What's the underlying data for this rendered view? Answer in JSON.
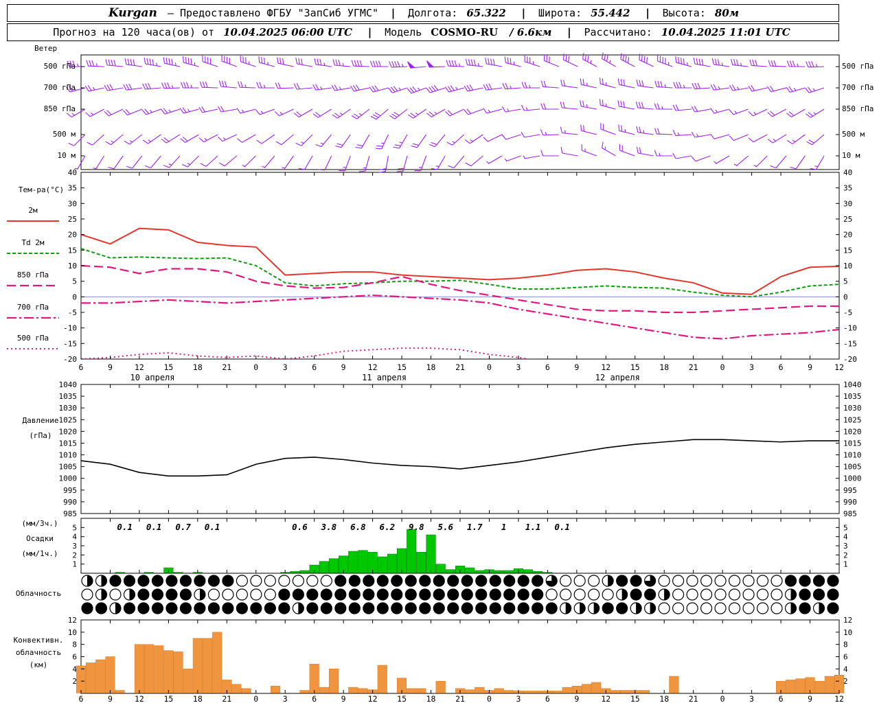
{
  "header1": {
    "station": "Kurgan",
    "provider": "Предоставлено ФГБУ \"ЗапСиб УГМС\"",
    "lon_label": "Долгота:",
    "lon": "65.322",
    "lat_label": "Широта:",
    "lat": "55.442",
    "alt_label": "Высота:",
    "alt": "80м"
  },
  "header2": {
    "forecast_label": "Прогноз на 120 часа(ов) от",
    "run": "10.04.2025 06:00 UTC",
    "model_label": "Модель",
    "model": "COSMO-RU",
    "model_res": "/ 6.6км",
    "calc_label": "Рассчитано:",
    "calc": "10.04.2025 11:01 UTC"
  },
  "sep": {
    "dash": "—",
    "pipe": "|"
  },
  "labels": {
    "wind": "Ветер",
    "wind_levels": [
      "500 гПа",
      "700 гПа",
      "850 гПа",
      "500 м",
      "10 м"
    ],
    "temp_title": "Тем-ра(°C)",
    "leg_2m": "2м",
    "leg_td": "Td 2м",
    "leg_850": "850 гПа",
    "leg_700": "700 гПа",
    "leg_500": "500 гПа",
    "pressure1": "Давление",
    "pressure2": "(гПа)",
    "precip1": "(мм/3ч.)",
    "precip2": "Осадки",
    "precip3": "(мм/1ч.)",
    "cloud": "Облачность",
    "conv1": "Конвективн.",
    "conv2": "облачность",
    "conv3": "(км)"
  },
  "chart_data": [
    {
      "id": "wind",
      "type": "wind-barbs",
      "color": "#a020f0",
      "levels": [
        {
          "label": "500 гПа",
          "dirs": [
            270,
            272,
            275,
            278,
            280,
            282,
            285,
            288,
            290,
            288,
            285,
            282,
            280,
            278,
            275,
            272,
            270,
            268,
            265,
            268,
            272,
            276,
            280,
            284,
            288,
            292,
            295,
            298,
            300,
            298,
            295,
            290,
            285,
            280,
            278,
            276,
            274,
            272,
            270,
            268
          ],
          "speeds": [
            35,
            35,
            40,
            40,
            45,
            45,
            45,
            40,
            40,
            35,
            35,
            30,
            30,
            35,
            35,
            40,
            40,
            45,
            50,
            50,
            45,
            45,
            40,
            35,
            35,
            30,
            30,
            35,
            35,
            40,
            40,
            45,
            45,
            40,
            35,
            35,
            30,
            30,
            35,
            35
          ]
        },
        {
          "label": "700 гПа",
          "dirs": [
            255,
            258,
            260,
            262,
            265,
            268,
            270,
            272,
            275,
            272,
            270,
            268,
            265,
            262,
            260,
            258,
            255,
            252,
            250,
            252,
            255,
            258,
            262,
            266,
            270,
            274,
            278,
            282,
            285,
            282,
            278,
            274,
            270,
            266,
            262,
            260,
            258,
            256,
            254,
            252
          ],
          "speeds": [
            25,
            25,
            30,
            30,
            30,
            35,
            35,
            30,
            30,
            25,
            25,
            20,
            20,
            25,
            25,
            30,
            30,
            35,
            35,
            40,
            35,
            30,
            30,
            25,
            25,
            20,
            20,
            25,
            25,
            30,
            30,
            35,
            35,
            30,
            25,
            25,
            20,
            20,
            25,
            25
          ]
        },
        {
          "label": "850 гПа",
          "dirs": [
            240,
            242,
            245,
            248,
            250,
            252,
            255,
            258,
            260,
            255,
            250,
            245,
            240,
            238,
            235,
            232,
            230,
            232,
            235,
            240,
            245,
            250,
            255,
            260,
            265,
            270,
            275,
            280,
            285,
            280,
            275,
            270,
            265,
            260,
            255,
            250,
            245,
            242,
            240,
            238
          ],
          "speeds": [
            15,
            15,
            20,
            20,
            25,
            25,
            25,
            20,
            20,
            15,
            15,
            15,
            20,
            20,
            25,
            25,
            30,
            30,
            25,
            25,
            20,
            20,
            15,
            15,
            15,
            20,
            20,
            25,
            25,
            30,
            30,
            25,
            20,
            20,
            15,
            15,
            15,
            20,
            20,
            25
          ]
        },
        {
          "label": "500 м",
          "dirs": [
            225,
            228,
            230,
            232,
            235,
            238,
            240,
            242,
            245,
            240,
            235,
            230,
            225,
            220,
            215,
            210,
            205,
            210,
            215,
            220,
            228,
            236,
            244,
            252,
            260,
            268,
            276,
            284,
            290,
            284,
            278,
            272,
            266,
            260,
            254,
            248,
            242,
            238,
            234,
            230
          ],
          "speeds": [
            10,
            10,
            15,
            15,
            15,
            20,
            20,
            15,
            15,
            10,
            10,
            10,
            15,
            15,
            20,
            20,
            25,
            25,
            20,
            20,
            15,
            15,
            10,
            10,
            10,
            15,
            15,
            20,
            20,
            25,
            25,
            20,
            15,
            15,
            10,
            10,
            10,
            15,
            15,
            20
          ]
        },
        {
          "label": "10 м",
          "dirs": [
            210,
            212,
            215,
            218,
            220,
            222,
            225,
            228,
            230,
            225,
            220,
            215,
            210,
            205,
            200,
            195,
            190,
            195,
            200,
            210,
            220,
            230,
            240,
            250,
            260,
            270,
            280,
            290,
            300,
            290,
            280,
            270,
            260,
            250,
            240,
            230,
            225,
            220,
            215,
            210
          ],
          "speeds": [
            5,
            5,
            10,
            10,
            10,
            15,
            15,
            10,
            10,
            5,
            5,
            5,
            10,
            10,
            15,
            15,
            20,
            20,
            15,
            15,
            10,
            10,
            5,
            5,
            5,
            10,
            10,
            15,
            15,
            20,
            20,
            15,
            10,
            10,
            5,
            5,
            5,
            10,
            10,
            15
          ]
        }
      ]
    },
    {
      "id": "temperature",
      "type": "line",
      "title": "Тем-ра(°C)",
      "ylim": [
        -20,
        40
      ],
      "yticks": [
        40,
        35,
        30,
        25,
        20,
        15,
        10,
        5,
        0,
        -5,
        -10,
        -15,
        -20
      ],
      "hour_labels": [
        "6",
        "9",
        "12",
        "15",
        "18",
        "21",
        "0",
        "3",
        "6",
        "9",
        "12",
        "15",
        "18",
        "21",
        "0",
        "3",
        "6",
        "9",
        "12",
        "15",
        "18",
        "21",
        "0",
        "3",
        "6",
        "9",
        "12"
      ],
      "dates": [
        {
          "label": "10 апреля",
          "tick": 2.45
        },
        {
          "label": "11 апреля",
          "tick": 10.4
        },
        {
          "label": "12 апреля",
          "tick": 18.4
        }
      ],
      "zero_line": true,
      "series": [
        {
          "name": "2м",
          "color": "#e5352b",
          "dash": "",
          "width": 2,
          "values": [
            20,
            17,
            22,
            21.5,
            17.5,
            16.5,
            16,
            7,
            7.5,
            8,
            8,
            7,
            6.5,
            6,
            5.5,
            6,
            7,
            8.5,
            9,
            8,
            6,
            4.5,
            1.2,
            0.8,
            6.5,
            9.5,
            9.8
          ]
        },
        {
          "name": "Td 2м",
          "color": "#0f9b0f",
          "dash": "5,3",
          "width": 2,
          "values": [
            15.5,
            12.5,
            12.8,
            12.5,
            12.3,
            12.5,
            10,
            4.5,
            3.5,
            4.2,
            4.5,
            5,
            5,
            5.3,
            4,
            2.5,
            2.5,
            3,
            3.5,
            3,
            2.8,
            1.5,
            0.5,
            0,
            1.5,
            3.5,
            4
          ]
        },
        {
          "name": "850 гПа",
          "color": "#e0187e",
          "dash": "13,6",
          "width": 2.2,
          "values": [
            10,
            9.5,
            7.5,
            9,
            9,
            8,
            5,
            3.5,
            2.8,
            3,
            4.5,
            6.5,
            4,
            2,
            0.5,
            -1,
            -2.5,
            -4,
            -4.5,
            -4.5,
            -5,
            -5,
            -4.5,
            -4,
            -3.5,
            -3,
            -3
          ]
        },
        {
          "name": "700 гПа",
          "color": "#e0187e",
          "dash": "14,4,3,4",
          "width": 2.2,
          "values": [
            -2,
            -2,
            -1.5,
            -1,
            -1.5,
            -2,
            -1.5,
            -1,
            -0.5,
            0,
            0.5,
            0,
            -0.5,
            -1,
            -2,
            -4,
            -5.5,
            -7,
            -8.5,
            -10,
            -11.5,
            -13,
            -13.5,
            -12.5,
            -12,
            -11.5,
            -10.5
          ]
        },
        {
          "name": "500 гПа",
          "color": "#e0187e",
          "dash": "2,4",
          "width": 2,
          "values": [
            -20,
            -19.5,
            -18.5,
            -18,
            -19,
            -19.5,
            -19,
            -20,
            -19,
            -17.5,
            -17,
            -16.5,
            -16.5,
            -17,
            -18.5,
            -19.5,
            -21,
            -22,
            -22,
            -22,
            -22,
            -22,
            -22,
            -22,
            -22,
            -22,
            -22
          ]
        }
      ]
    },
    {
      "id": "pressure",
      "type": "line",
      "title": "Давление (гПа)",
      "ylim": [
        985,
        1040
      ],
      "yticks": [
        1040,
        1035,
        1030,
        1025,
        1020,
        1015,
        1010,
        1005,
        1000,
        995,
        990,
        985
      ],
      "series": [
        {
          "name": "Давление",
          "color": "#000000",
          "dash": "",
          "width": 1.6,
          "values": [
            1007.5,
            1006,
            1002.5,
            1001,
            1001,
            1001.5,
            1006,
            1008.5,
            1009,
            1008,
            1006.5,
            1005.5,
            1005,
            1004,
            1005.5,
            1007,
            1009,
            1011,
            1013,
            1014.5,
            1015.5,
            1016.5,
            1016.5,
            1016,
            1015.5,
            1016,
            1016
          ]
        }
      ]
    },
    {
      "id": "precipitation",
      "type": "bar",
      "title": "Осадки (мм/1ч.)",
      "ylim": [
        0,
        6
      ],
      "yticks": [
        5,
        4,
        3,
        2,
        1
      ],
      "color": "#00c800",
      "stroke": "#007700",
      "hourly": {
        "4": 0.1,
        "7": 0.1,
        "9": 0.6,
        "10": 0.1,
        "12": 0.1,
        "21": 0.1,
        "22": 0.2,
        "23": 0.3,
        "24": 0.9,
        "25": 1.3,
        "26": 1.6,
        "27": 1.9,
        "28": 2.4,
        "29": 2.5,
        "30": 2.3,
        "31": 1.8,
        "32": 2.1,
        "33": 2.7,
        "34": 4.8,
        "35": 2.3,
        "36": 4.2,
        "37": 1.0,
        "38": 0.4,
        "39": 0.8,
        "40": 0.6,
        "41": 0.3,
        "42": 0.4,
        "43": 0.3,
        "44": 0.3,
        "45": 0.5,
        "46": 0.4,
        "47": 0.2,
        "48": 0.1
      },
      "labels_3h": [
        {
          "tick": 1.5,
          "text": "0.1"
        },
        {
          "tick": 2.5,
          "text": "0.1"
        },
        {
          "tick": 3.5,
          "text": "0.7"
        },
        {
          "tick": 4.5,
          "text": "0.1"
        },
        {
          "tick": 7.5,
          "text": "0.6"
        },
        {
          "tick": 8.5,
          "text": "3.8"
        },
        {
          "tick": 9.5,
          "text": "6.8"
        },
        {
          "tick": 10.5,
          "text": "6.2"
        },
        {
          "tick": 11.5,
          "text": "9.8"
        },
        {
          "tick": 12.5,
          "text": "5.6"
        },
        {
          "tick": 13.5,
          "text": "1.7"
        },
        {
          "tick": 14.5,
          "text": "1"
        },
        {
          "tick": 15.5,
          "text": "1.1"
        },
        {
          "tick": 16.5,
          "text": "0.1"
        }
      ]
    },
    {
      "id": "cloudiness",
      "type": "symbol-rows",
      "title": "Облачность",
      "note": "fractions in quarters: 0=clear, 2=half, 3=three-quarters, 4=overcast",
      "rows": [
        [
          2,
          2,
          4,
          4,
          4,
          4,
          4,
          4,
          4,
          4,
          4,
          0,
          0,
          0,
          0,
          0,
          0,
          0,
          4,
          4,
          4,
          4,
          4,
          4,
          4,
          4,
          4,
          4,
          4,
          4,
          4,
          4,
          4,
          3,
          0,
          0,
          0,
          2,
          4,
          4,
          3,
          0,
          0,
          0,
          0,
          0,
          0,
          0,
          0,
          0,
          4,
          4,
          4,
          4
        ],
        [
          0,
          2,
          0,
          2,
          4,
          4,
          4,
          4,
          2,
          0,
          0,
          0,
          0,
          0,
          4,
          4,
          4,
          4,
          4,
          4,
          4,
          4,
          4,
          4,
          4,
          4,
          4,
          4,
          4,
          4,
          4,
          4,
          4,
          0,
          0,
          0,
          0,
          0,
          2,
          4,
          4,
          2,
          0,
          0,
          0,
          0,
          0,
          0,
          0,
          0,
          2,
          4,
          4,
          4
        ],
        [
          4,
          4,
          2,
          4,
          4,
          4,
          4,
          4,
          4,
          4,
          4,
          4,
          4,
          4,
          4,
          2,
          4,
          4,
          4,
          4,
          4,
          4,
          4,
          4,
          4,
          4,
          4,
          4,
          4,
          4,
          4,
          4,
          4,
          4,
          2,
          2,
          2,
          4,
          4,
          2,
          2,
          0,
          0,
          0,
          0,
          0,
          0,
          0,
          0,
          0,
          2,
          4,
          2,
          4
        ]
      ]
    },
    {
      "id": "convective",
      "type": "bar",
      "title": "Конвективн. облачность (км)",
      "ylim": [
        0,
        12
      ],
      "yticks": [
        12,
        10,
        8,
        6,
        4,
        2
      ],
      "color": "#f0953f",
      "stroke": "#d87a20",
      "hourly": {
        "0": 4.5,
        "1": 5,
        "2": 5.5,
        "3": 6,
        "4": 0.5,
        "6": 8,
        "7": 8,
        "8": 7.8,
        "9": 7,
        "10": 6.8,
        "11": 4,
        "12": 9,
        "13": 9,
        "14": 10,
        "15": 2.2,
        "16": 1.5,
        "17": 0.8,
        "20": 1.2,
        "23": 0.5,
        "24": 4.8,
        "25": 1,
        "26": 4,
        "28": 1,
        "29": 0.8,
        "30": 0.6,
        "31": 4.6,
        "33": 2.5,
        "34": 0.8,
        "35": 0.8,
        "37": 2,
        "39": 0.8,
        "40": 0.6,
        "41": 1,
        "42": 0.5,
        "43": 0.8,
        "44": 0.5,
        "45": 0.4,
        "46": 0.4,
        "47": 0.4,
        "48": 0.4,
        "49": 0.4,
        "50": 1,
        "51": 1.2,
        "52": 1.5,
        "53": 1.8,
        "54": 0.8,
        "55": 0.5,
        "56": 0.5,
        "57": 0.5,
        "58": 0.5,
        "61": 2.8,
        "72": 2,
        "73": 2.2,
        "74": 2.4,
        "75": 2.6,
        "76": 2,
        "77": 2.8,
        "78": 3
      }
    }
  ]
}
